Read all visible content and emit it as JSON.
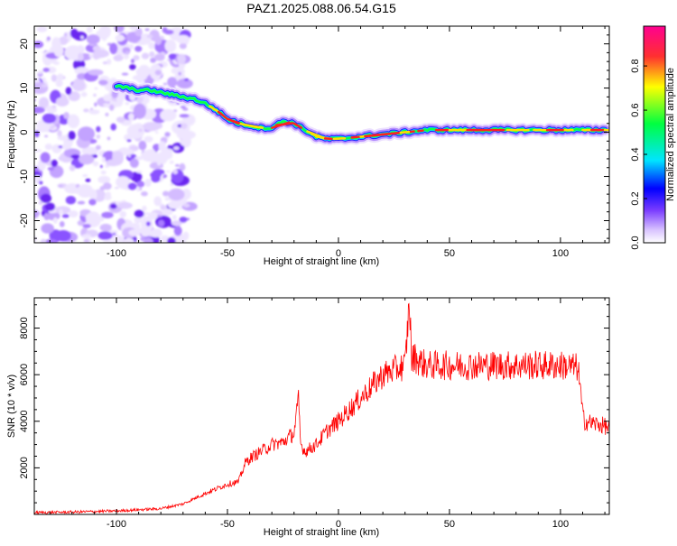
{
  "chart_data": [
    {
      "type": "heatmap",
      "title": "PAZ1.2025.088.06.54.G15",
      "xlabel": "Height of straight line (km)",
      "ylabel": "Frequency (Hz)",
      "xlim": [
        -137,
        122
      ],
      "ylim": [
        -25,
        24
      ],
      "xticks": [
        -100,
        -50,
        0,
        50,
        100
      ],
      "yticks": [
        20,
        10,
        0,
        -10,
        -20
      ],
      "colorbar": {
        "label": "Normalized spectral amplitude",
        "range": [
          0.0,
          0.98
        ],
        "ticks": [
          0.0,
          0.2,
          0.4,
          0.6,
          0.8
        ],
        "colormap": [
          "#ffffff",
          "#7a3cff",
          "#0000ff",
          "#00e5ff",
          "#00ff40",
          "#ffff00",
          "#ff3030",
          "#ff0090"
        ]
      },
      "ridge": {
        "name": "dominant frequency",
        "x": [
          -100,
          -95,
          -90,
          -85,
          -80,
          -75,
          -70,
          -65,
          -60,
          -55,
          -50,
          -45,
          -40,
          -35,
          -30,
          -25,
          -20,
          -15,
          -10,
          -5,
          0,
          10,
          20,
          30,
          40,
          50,
          60,
          70,
          80,
          90,
          100,
          110,
          120
        ],
        "y": [
          10.5,
          10,
          9.5,
          9.5,
          9,
          8.5,
          8,
          7.5,
          6.5,
          5,
          3,
          2,
          1.5,
          1,
          1,
          2.5,
          2,
          0.5,
          -1,
          -1.5,
          -1.5,
          -1,
          -0.5,
          0,
          0.5,
          0.5,
          0.5,
          0.5,
          0.5,
          0.5,
          0.5,
          0.5,
          0.5
        ]
      }
    },
    {
      "type": "line",
      "xlabel": "Height of straight line (km)",
      "ylabel": "SNR (10 * v/v)",
      "xlim": [
        -137,
        122
      ],
      "ylim": [
        0,
        9300
      ],
      "xticks": [
        -100,
        -50,
        0,
        50,
        100
      ],
      "yticks": [
        2000,
        4000,
        6000,
        8000
      ],
      "color": "#ff0000",
      "series": [
        {
          "x": [
            -137,
            -120,
            -100,
            -80,
            -70,
            -60,
            -50,
            -45,
            -42,
            -40,
            -35,
            -30,
            -25,
            -20,
            -18,
            -17,
            -15,
            -10,
            -5,
            0,
            5,
            10,
            15,
            20,
            25,
            30,
            32,
            33,
            34,
            36,
            40,
            50,
            60,
            70,
            80,
            90,
            100,
            108,
            110,
            111,
            115,
            120,
            122
          ],
          "y": [
            80,
            100,
            150,
            250,
            450,
            900,
            1300,
            1400,
            2200,
            2400,
            2700,
            3000,
            3100,
            3500,
            4900,
            3000,
            2700,
            3000,
            3600,
            4000,
            4500,
            5000,
            5500,
            6000,
            6200,
            6400,
            9200,
            6500,
            6800,
            6600,
            6400,
            6400,
            6400,
            6400,
            6400,
            6400,
            6400,
            6300,
            4300,
            4000,
            3900,
            3800,
            3700
          ]
        }
      ]
    }
  ]
}
